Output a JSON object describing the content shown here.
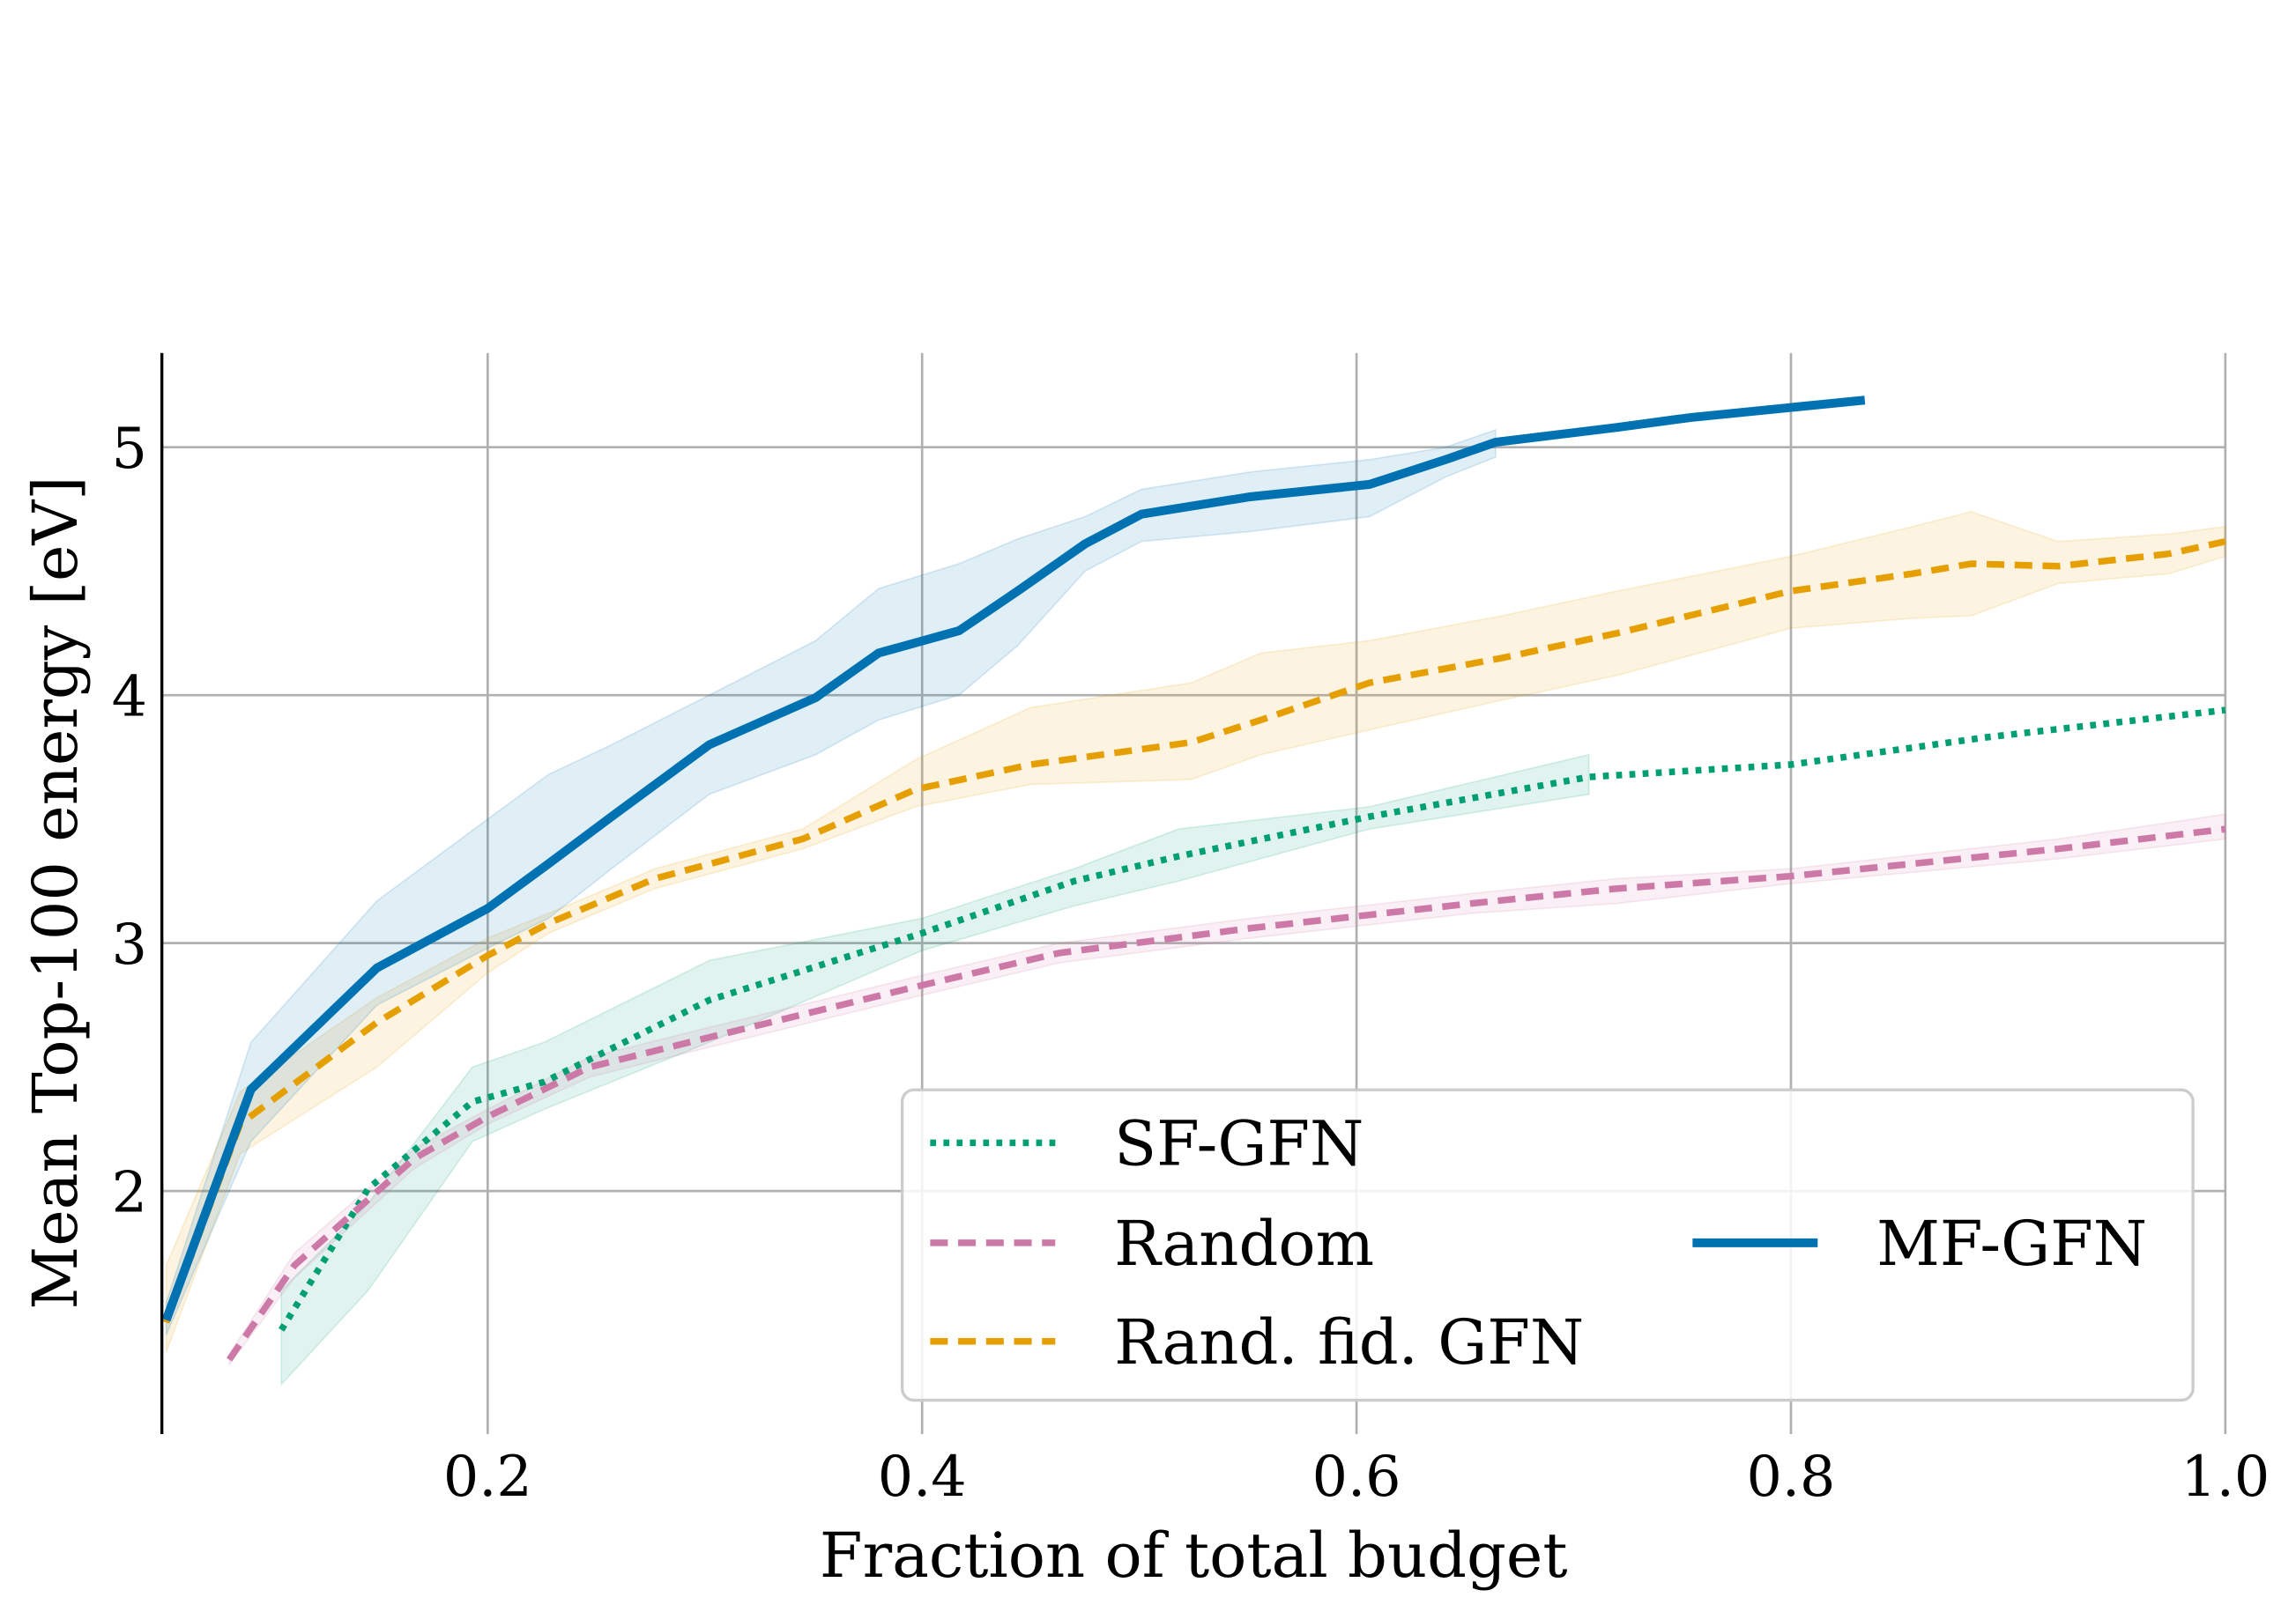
{
  "chart_data": {
    "type": "line",
    "title": "",
    "xlabel": "Fraction of total budget",
    "ylabel": "Mean Top-100 energy [eV]",
    "xlim": [
      0.05,
      1.0
    ],
    "ylim": [
      1.02,
      5.38
    ],
    "xticks": [
      0.2,
      0.4,
      0.6,
      0.8,
      1.0
    ],
    "xtick_labels": [
      "0.2",
      "0.4",
      "0.6",
      "0.8",
      "1.0"
    ],
    "yticks": [
      2,
      3,
      4,
      5
    ],
    "ytick_labels": [
      "2",
      "3",
      "4",
      "5"
    ],
    "grid": true,
    "legend_placement": "lower-right",
    "series": [
      {
        "name": "SF-GFN",
        "color": "#009E73",
        "style": "dotted",
        "x": [
          0.105,
          0.145,
          0.193,
          0.226,
          0.302,
          0.4,
          0.47,
          0.518,
          0.606,
          0.707,
          0.8,
          0.89,
          1.0
        ],
        "y": [
          1.44,
          2.01,
          2.36,
          2.44,
          2.77,
          3.04,
          3.25,
          3.35,
          3.51,
          3.67,
          3.72,
          3.83,
          3.94
        ],
        "band_x": [
          0.105,
          0.145,
          0.193,
          0.226,
          0.302,
          0.4,
          0.47,
          0.518,
          0.606,
          0.707
        ],
        "band_upper": [
          1.6,
          1.95,
          2.5,
          2.6,
          2.93,
          3.1,
          3.3,
          3.46,
          3.55,
          3.76
        ],
        "band_lower": [
          1.22,
          1.6,
          2.2,
          2.33,
          2.6,
          2.97,
          3.15,
          3.25,
          3.46,
          3.6
        ]
      },
      {
        "name": "Random",
        "color": "#CC79A7",
        "style": "dashed",
        "x": [
          0.081,
          0.111,
          0.166,
          0.2,
          0.247,
          0.302,
          0.4,
          0.463,
          0.551,
          0.653,
          0.72,
          0.8,
          0.923,
          1.0
        ],
        "y": [
          1.32,
          1.7,
          2.13,
          2.3,
          2.5,
          2.62,
          2.83,
          2.96,
          3.06,
          3.16,
          3.22,
          3.27,
          3.38,
          3.46
        ],
        "band_x": [
          0.081,
          0.111,
          0.166,
          0.2,
          0.247,
          0.302,
          0.4,
          0.463,
          0.551,
          0.653,
          0.72,
          0.8,
          0.923,
          1.0
        ],
        "band_upper": [
          1.34,
          1.75,
          2.17,
          2.33,
          2.54,
          2.66,
          2.87,
          3.0,
          3.1,
          3.2,
          3.26,
          3.3,
          3.42,
          3.52
        ],
        "band_lower": [
          1.3,
          1.65,
          2.09,
          2.27,
          2.46,
          2.58,
          2.79,
          2.92,
          3.02,
          3.12,
          3.16,
          3.24,
          3.34,
          3.42
        ]
      },
      {
        "name": "Rand. fid. GFN",
        "color": "#E69F00",
        "style": "dashed",
        "x": [
          0.052,
          0.086,
          0.149,
          0.2,
          0.228,
          0.277,
          0.345,
          0.397,
          0.45,
          0.524,
          0.556,
          0.606,
          0.667,
          0.72,
          0.8,
          0.856,
          0.883,
          0.923,
          0.974,
          1.0
        ],
        "y": [
          1.47,
          2.27,
          2.68,
          2.95,
          3.08,
          3.26,
          3.42,
          3.62,
          3.72,
          3.81,
          3.9,
          4.05,
          4.15,
          4.25,
          4.42,
          4.49,
          4.53,
          4.52,
          4.57,
          4.62
        ],
        "band_x": [
          0.052,
          0.086,
          0.149,
          0.2,
          0.228,
          0.277,
          0.345,
          0.397,
          0.45,
          0.524,
          0.556,
          0.606,
          0.667,
          0.72,
          0.8,
          0.856,
          0.883,
          0.923,
          0.974,
          1.0
        ],
        "band_upper": [
          1.7,
          2.4,
          2.78,
          3.02,
          3.12,
          3.3,
          3.46,
          3.74,
          3.95,
          4.05,
          4.17,
          4.22,
          4.32,
          4.42,
          4.56,
          4.68,
          4.74,
          4.62,
          4.65,
          4.68
        ],
        "band_lower": [
          1.35,
          2.15,
          2.5,
          2.88,
          3.04,
          3.22,
          3.38,
          3.55,
          3.64,
          3.66,
          3.76,
          3.86,
          3.98,
          4.08,
          4.27,
          4.31,
          4.32,
          4.45,
          4.49,
          4.56
        ]
      },
      {
        "name": "MF-GFN",
        "color": "#0072B2",
        "style": "solid",
        "x": [
          0.052,
          0.091,
          0.149,
          0.2,
          0.228,
          0.257,
          0.302,
          0.351,
          0.38,
          0.417,
          0.444,
          0.475,
          0.501,
          0.551,
          0.606,
          0.641,
          0.664,
          0.72,
          0.754,
          0.834
        ],
        "y": [
          1.48,
          2.41,
          2.9,
          3.14,
          3.32,
          3.51,
          3.8,
          3.99,
          4.17,
          4.26,
          4.42,
          4.61,
          4.73,
          4.8,
          4.85,
          4.95,
          5.02,
          5.08,
          5.12,
          5.19
        ],
        "band_x": [
          0.052,
          0.091,
          0.149,
          0.2,
          0.228,
          0.257,
          0.302,
          0.351,
          0.38,
          0.417,
          0.444,
          0.475,
          0.501,
          0.551,
          0.606,
          0.641,
          0.664
        ],
        "band_upper": [
          1.55,
          2.6,
          3.17,
          3.5,
          3.68,
          3.8,
          4.0,
          4.22,
          4.43,
          4.53,
          4.63,
          4.72,
          4.83,
          4.9,
          4.95,
          5.0,
          5.07
        ],
        "band_lower": [
          1.42,
          2.2,
          2.75,
          2.98,
          3.1,
          3.3,
          3.6,
          3.76,
          3.9,
          4.0,
          4.2,
          4.5,
          4.62,
          4.66,
          4.72,
          4.88,
          4.96
        ]
      }
    ]
  }
}
